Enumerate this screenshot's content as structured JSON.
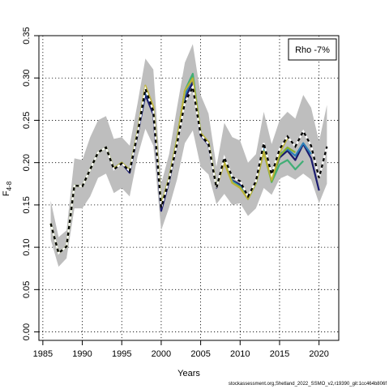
{
  "chart_data": {
    "type": "line",
    "title": "",
    "xlabel": "Years",
    "ylabel": {
      "main": "F",
      "sub": "4-8"
    },
    "xlim": [
      1984.5,
      2022.5
    ],
    "ylim": [
      -0.01,
      0.35
    ],
    "xticks": [
      1985,
      1990,
      1995,
      2000,
      2005,
      2010,
      2015,
      2020
    ],
    "yticks": [
      0.0,
      0.05,
      0.1,
      0.15,
      0.2,
      0.25,
      0.3,
      0.35
    ],
    "ytick_labels": [
      "0.00",
      "0.05",
      "0.10",
      "0.15",
      "0.20",
      "0.25",
      "0.30",
      "0.35"
    ],
    "grid": true,
    "legend": {
      "text": "Rho -7%",
      "position": "top-right"
    },
    "confidence_band": {
      "x": [
        1986,
        1987,
        1988,
        1989,
        1990,
        1991,
        1992,
        1993,
        1994,
        1995,
        1996,
        1997,
        1998,
        1999,
        2000,
        2001,
        2002,
        2003,
        2004,
        2005,
        2006,
        2007,
        2008,
        2009,
        2010,
        2011,
        2012,
        2013,
        2014,
        2015,
        2016,
        2017,
        2018,
        2019,
        2020,
        2021
      ],
      "lower": [
        0.109,
        0.077,
        0.087,
        0.146,
        0.146,
        0.16,
        0.182,
        0.187,
        0.164,
        0.17,
        0.16,
        0.207,
        0.24,
        0.22,
        0.12,
        0.147,
        0.18,
        0.223,
        0.238,
        0.195,
        0.186,
        0.151,
        0.163,
        0.15,
        0.152,
        0.137,
        0.146,
        0.17,
        0.162,
        0.181,
        0.185,
        0.18,
        0.187,
        0.18,
        0.152,
        0.175
      ],
      "upper": [
        0.155,
        0.112,
        0.12,
        0.205,
        0.203,
        0.23,
        0.25,
        0.255,
        0.228,
        0.23,
        0.22,
        0.27,
        0.323,
        0.31,
        0.175,
        0.21,
        0.265,
        0.318,
        0.34,
        0.28,
        0.258,
        0.195,
        0.247,
        0.23,
        0.226,
        0.2,
        0.21,
        0.26,
        0.222,
        0.25,
        0.26,
        0.252,
        0.28,
        0.265,
        0.225,
        0.268
      ],
      "color": "#bebebe"
    },
    "series": [
      {
        "name": "",
        "color": "#000000",
        "dashed": true,
        "x": [
          1986,
          1987,
          1988,
          1989,
          1990,
          1991,
          1992,
          1993,
          1994,
          1995,
          1996,
          1997,
          1998,
          1999,
          2000,
          2001,
          2002,
          2003,
          2004,
          2005,
          2006,
          2007,
          2008,
          2009,
          2010,
          2011,
          2012,
          2013,
          2014,
          2015,
          2016,
          2017,
          2018,
          2019,
          2020,
          2021
        ],
        "values": [
          0.128,
          0.093,
          0.101,
          0.173,
          0.172,
          0.192,
          0.212,
          0.218,
          0.192,
          0.199,
          0.19,
          0.234,
          0.287,
          0.261,
          0.147,
          0.18,
          0.222,
          0.271,
          0.289,
          0.233,
          0.222,
          0.17,
          0.206,
          0.183,
          0.178,
          0.16,
          0.178,
          0.223,
          0.186,
          0.216,
          0.231,
          0.219,
          0.237,
          0.22,
          0.182,
          0.219
        ]
      },
      {
        "name": "",
        "color": "#ffffff",
        "dashed": false,
        "x": [
          1986,
          1987,
          1988,
          1989,
          1990,
          1991,
          1992,
          1993,
          1994,
          1995,
          1996,
          1997,
          1998,
          1999,
          2000,
          2001,
          2002,
          2003,
          2004,
          2005,
          2006,
          2007,
          2008,
          2009,
          2010,
          2011,
          2012,
          2013,
          2014,
          2015,
          2016,
          2017,
          2018,
          2019,
          2020,
          2021
        ],
        "values": [
          0.128,
          0.093,
          0.101,
          0.173,
          0.172,
          0.192,
          0.212,
          0.218,
          0.192,
          0.199,
          0.19,
          0.234,
          0.287,
          0.261,
          0.147,
          0.18,
          0.222,
          0.271,
          0.289,
          0.233,
          0.222,
          0.17,
          0.206,
          0.183,
          0.178,
          0.16,
          0.178,
          0.223,
          0.186,
          0.216,
          0.231,
          0.219,
          0.237,
          0.22,
          0.182,
          0.219
        ]
      },
      {
        "name": "",
        "color": "#1a1a6e",
        "dashed": false,
        "x": [
          1986,
          1987,
          1988,
          1989,
          1990,
          1991,
          1992,
          1993,
          1994,
          1995,
          1996,
          1997,
          1998,
          1999,
          2000,
          2001,
          2002,
          2003,
          2004,
          2005,
          2006,
          2007,
          2008,
          2009,
          2010,
          2011,
          2012,
          2013,
          2014,
          2015,
          2016,
          2017,
          2018,
          2019,
          2020
        ],
        "values": [
          0.128,
          0.093,
          0.101,
          0.173,
          0.172,
          0.192,
          0.212,
          0.218,
          0.192,
          0.199,
          0.188,
          0.233,
          0.28,
          0.257,
          0.143,
          0.178,
          0.222,
          0.275,
          0.295,
          0.232,
          0.221,
          0.17,
          0.204,
          0.179,
          0.174,
          0.157,
          0.176,
          0.219,
          0.18,
          0.206,
          0.214,
          0.203,
          0.222,
          0.205,
          0.167
        ]
      },
      {
        "name": "",
        "color": "#2c7fb8",
        "dashed": false,
        "x": [
          1986,
          1987,
          1988,
          1989,
          1990,
          1991,
          1992,
          1993,
          1994,
          1995,
          1996,
          1997,
          1998,
          1999,
          2000,
          2001,
          2002,
          2003,
          2004,
          2005,
          2006,
          2007,
          2008,
          2009,
          2010,
          2011,
          2012,
          2013,
          2014,
          2015,
          2016,
          2017,
          2018,
          2019
        ],
        "values": [
          0.128,
          0.093,
          0.101,
          0.173,
          0.172,
          0.192,
          0.212,
          0.218,
          0.193,
          0.2,
          0.19,
          0.235,
          0.285,
          0.262,
          0.148,
          0.18,
          0.225,
          0.28,
          0.3,
          0.234,
          0.223,
          0.171,
          0.203,
          0.178,
          0.172,
          0.158,
          0.177,
          0.218,
          0.18,
          0.21,
          0.216,
          0.208,
          0.223,
          0.21
        ]
      },
      {
        "name": "",
        "color": "#41ae76",
        "dashed": false,
        "x": [
          1986,
          1987,
          1988,
          1989,
          1990,
          1991,
          1992,
          1993,
          1994,
          1995,
          1996,
          1997,
          1998,
          1999,
          2000,
          2001,
          2002,
          2003,
          2004,
          2005,
          2006,
          2007,
          2008,
          2009,
          2010,
          2011,
          2012,
          2013,
          2014,
          2015,
          2016,
          2017,
          2018
        ],
        "values": [
          0.128,
          0.093,
          0.101,
          0.173,
          0.172,
          0.192,
          0.212,
          0.218,
          0.193,
          0.2,
          0.191,
          0.236,
          0.288,
          0.264,
          0.15,
          0.182,
          0.228,
          0.285,
          0.305,
          0.235,
          0.224,
          0.171,
          0.202,
          0.177,
          0.171,
          0.157,
          0.176,
          0.214,
          0.177,
          0.198,
          0.203,
          0.192,
          0.202
        ]
      },
      {
        "name": "",
        "color": "#8cb42e",
        "dashed": false,
        "x": [
          1986,
          1987,
          1988,
          1989,
          1990,
          1991,
          1992,
          1993,
          1994,
          1995,
          1996,
          1997,
          1998,
          1999,
          2000,
          2001,
          2002,
          2003,
          2004,
          2005,
          2006,
          2007,
          2008,
          2009,
          2010,
          2011,
          2012,
          2013,
          2014,
          2015,
          2016,
          2017
        ],
        "values": [
          0.128,
          0.093,
          0.101,
          0.173,
          0.172,
          0.192,
          0.212,
          0.218,
          0.193,
          0.2,
          0.191,
          0.236,
          0.29,
          0.265,
          0.15,
          0.182,
          0.227,
          0.285,
          0.3,
          0.235,
          0.224,
          0.171,
          0.201,
          0.176,
          0.171,
          0.157,
          0.176,
          0.212,
          0.178,
          0.208,
          0.218,
          0.212
        ]
      },
      {
        "name": "",
        "color": "#bdb23a",
        "dashed": false,
        "x": [
          1986,
          1987,
          1988,
          1989,
          1990,
          1991,
          1992,
          1993,
          1994,
          1995,
          1996,
          1997,
          1998,
          1999,
          2000,
          2001,
          2002,
          2003,
          2004,
          2005,
          2006,
          2007,
          2008,
          2009,
          2010,
          2011,
          2012,
          2013,
          2014,
          2015,
          2016
        ],
        "values": [
          0.128,
          0.093,
          0.101,
          0.173,
          0.172,
          0.192,
          0.212,
          0.218,
          0.193,
          0.2,
          0.191,
          0.236,
          0.291,
          0.266,
          0.15,
          0.182,
          0.227,
          0.285,
          0.299,
          0.235,
          0.224,
          0.171,
          0.2,
          0.176,
          0.17,
          0.157,
          0.177,
          0.213,
          0.18,
          0.212,
          0.229
        ]
      }
    ]
  },
  "footer": "stockassessment.org,Shetland_2022_SSMO_v2,r19390_git:1cc464b806f"
}
